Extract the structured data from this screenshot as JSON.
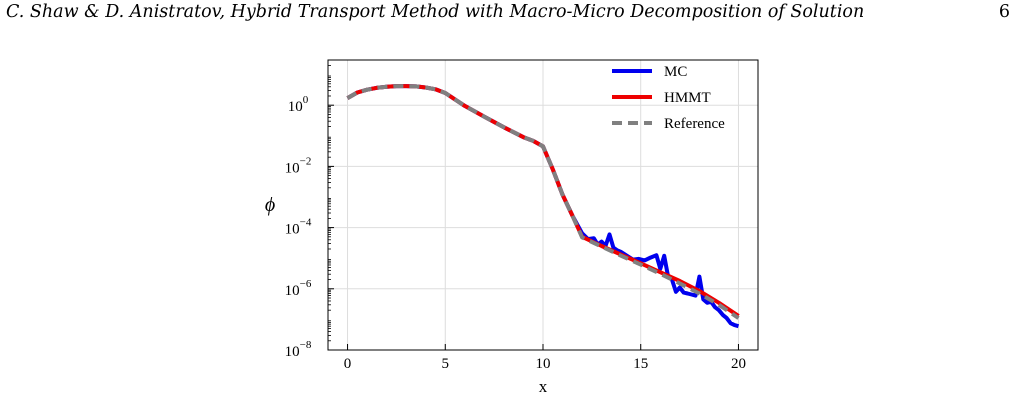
{
  "header": {
    "title": "C. Shaw & D. Anistratov, Hybrid Transport Method with Macro-Micro Decomposition of Solution",
    "page_number": "6"
  },
  "chart_data": {
    "type": "line",
    "xlabel": "x",
    "ylabel": "ϕ",
    "xlim": [
      -1,
      21
    ],
    "ylim": [
      1e-08,
      30
    ],
    "yscale": "log",
    "grid": true,
    "legend_position": "top-right",
    "x_ticks": [
      0,
      5,
      10,
      15,
      20
    ],
    "y_ticks": [
      {
        "base": "10",
        "exp": "0",
        "value": 1
      },
      {
        "base": "10",
        "exp": "−2",
        "value": 0.01
      },
      {
        "base": "10",
        "exp": "−4",
        "value": 0.0001
      },
      {
        "base": "10",
        "exp": "−6",
        "value": 1e-06
      },
      {
        "base": "10",
        "exp": "−8",
        "value": 1e-08
      }
    ],
    "series": [
      {
        "name": "MC",
        "color": "#0000ee",
        "dash": "solid",
        "x": [
          0,
          0.5,
          1,
          1.5,
          2,
          2.5,
          3,
          3.5,
          4,
          4.5,
          5,
          6,
          7,
          8,
          9,
          9.5,
          10,
          10.5,
          11,
          11.5,
          12,
          12.3,
          12.6,
          12.8,
          13.0,
          13.2,
          13.4,
          13.6,
          13.8,
          14.0,
          14.3,
          14.6,
          14.9,
          15.2,
          15.5,
          15.8,
          16.0,
          16.2,
          16.4,
          16.6,
          16.8,
          17.0,
          17.2,
          17.4,
          17.6,
          17.8,
          18.0,
          18.2,
          18.4,
          18.6,
          18.8,
          19.0,
          19.2,
          19.4,
          19.6,
          19.8,
          20.0
        ],
        "y": [
          1.7,
          2.6,
          3.2,
          3.7,
          4.0,
          4.2,
          4.2,
          4.1,
          3.8,
          3.3,
          2.5,
          0.95,
          0.42,
          0.19,
          0.09,
          0.068,
          0.045,
          0.008,
          0.0012,
          0.00025,
          6.5e-05,
          4.2e-05,
          4.5e-05,
          2.8e-05,
          3.5e-05,
          2.5e-05,
          6e-05,
          2.2e-05,
          1.8e-05,
          1.6e-05,
          1.2e-05,
          9e-06,
          9.5e-06,
          8.5e-06,
          1.05e-05,
          1.25e-05,
          4.5e-06,
          1.2e-05,
          2.5e-06,
          2e-06,
          8e-07,
          1.1e-06,
          7.5e-07,
          7e-07,
          6.5e-07,
          6e-07,
          2.5e-06,
          4.5e-07,
          3.5e-07,
          3.8e-07,
          2.5e-07,
          2e-07,
          1.4e-07,
          1.1e-07,
          7.5e-08,
          6.5e-08,
          6e-08
        ]
      },
      {
        "name": "HMMT",
        "color": "#ee0000",
        "dash": "solid",
        "x": [
          0,
          0.5,
          1,
          1.5,
          2,
          2.5,
          3,
          3.5,
          4,
          4.5,
          5,
          6,
          7,
          8,
          9,
          9.5,
          10,
          10.5,
          11,
          11.5,
          12,
          13,
          14,
          15,
          16,
          17,
          18,
          19,
          20
        ],
        "y": [
          1.7,
          2.6,
          3.2,
          3.7,
          4.0,
          4.2,
          4.2,
          4.1,
          3.8,
          3.3,
          2.5,
          0.95,
          0.42,
          0.19,
          0.09,
          0.068,
          0.045,
          0.008,
          0.0012,
          0.00025,
          5e-05,
          2.5e-05,
          1.3e-05,
          6.8e-06,
          3.5e-06,
          1.8e-06,
          8.5e-07,
          3.5e-07,
          1.3e-07
        ]
      },
      {
        "name": "Reference",
        "color": "#808080",
        "dash": "dashed",
        "x": [
          0,
          0.5,
          1,
          1.5,
          2,
          2.5,
          3,
          3.5,
          4,
          4.5,
          5,
          6,
          7,
          8,
          9,
          9.5,
          10,
          10.5,
          11,
          11.5,
          12,
          13,
          14,
          15,
          16,
          17,
          18,
          19,
          20
        ],
        "y": [
          1.7,
          2.6,
          3.2,
          3.7,
          4.0,
          4.2,
          4.2,
          4.1,
          3.8,
          3.3,
          2.5,
          0.95,
          0.42,
          0.19,
          0.09,
          0.068,
          0.045,
          0.008,
          0.0012,
          0.00025,
          4.8e-05,
          2.4e-05,
          1.2e-05,
          6.2e-06,
          3.1e-06,
          1.5e-06,
          7e-07,
          3e-07,
          1.1e-07
        ]
      }
    ]
  }
}
